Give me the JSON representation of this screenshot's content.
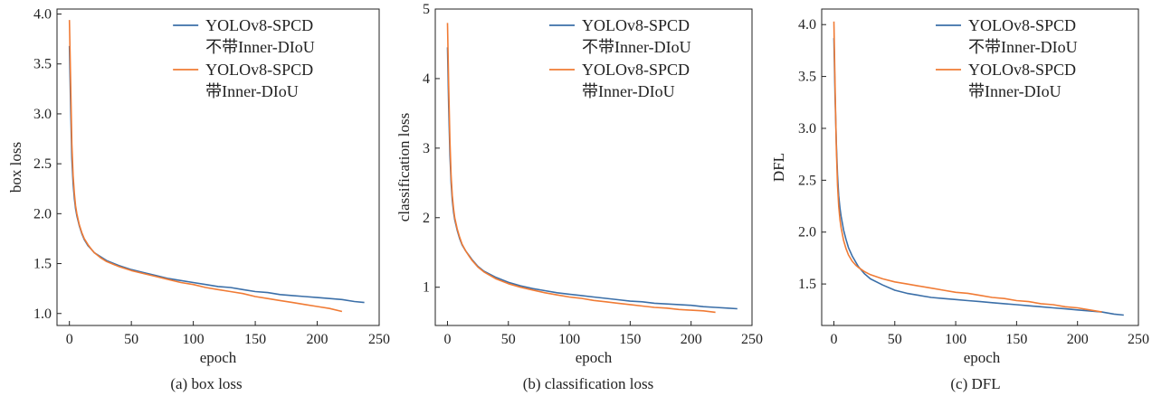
{
  "figure": {
    "panels_caption": [
      "(a) box loss",
      "(b) classification loss",
      "(c) DFL"
    ]
  },
  "chart_data": [
    {
      "type": "line",
      "caption": "(a) box loss",
      "xlabel": "epoch",
      "ylabel": "box loss",
      "xlim": [
        -10,
        250
      ],
      "ylim": [
        0.88,
        4.05
      ],
      "xticks": [
        0,
        50,
        100,
        150,
        200,
        250
      ],
      "yticks": [
        1.0,
        1.5,
        2.0,
        2.5,
        3.0,
        3.5,
        4.0
      ],
      "ytick_labels": [
        "1.0",
        "1.5",
        "2.0",
        "2.5",
        "3.0",
        "3.5",
        "4.0"
      ],
      "grid": false,
      "legend_position": "top-right",
      "series": [
        {
          "name": "YOLOv8-SPCD\n不带Inner-DIoU",
          "color": "#3b6fa8",
          "x": [
            0,
            1,
            2,
            3,
            4,
            5,
            6,
            8,
            10,
            12,
            15,
            18,
            20,
            25,
            30,
            40,
            50,
            60,
            70,
            80,
            90,
            100,
            110,
            120,
            130,
            140,
            150,
            160,
            170,
            180,
            190,
            200,
            210,
            220,
            230,
            238
          ],
          "y": [
            3.68,
            3.05,
            2.55,
            2.3,
            2.15,
            2.05,
            1.98,
            1.88,
            1.8,
            1.74,
            1.68,
            1.64,
            1.61,
            1.57,
            1.53,
            1.48,
            1.44,
            1.41,
            1.38,
            1.35,
            1.33,
            1.31,
            1.29,
            1.27,
            1.26,
            1.24,
            1.22,
            1.21,
            1.19,
            1.18,
            1.17,
            1.16,
            1.15,
            1.14,
            1.12,
            1.11
          ]
        },
        {
          "name": "YOLOv8-SPCD\n带Inner-DIoU",
          "color": "#f07b35",
          "x": [
            0,
            1,
            2,
            3,
            4,
            5,
            6,
            8,
            10,
            12,
            15,
            18,
            20,
            25,
            30,
            40,
            50,
            60,
            70,
            80,
            90,
            100,
            110,
            120,
            130,
            140,
            150,
            160,
            170,
            180,
            190,
            200,
            210,
            220
          ],
          "y": [
            3.94,
            3.3,
            2.7,
            2.38,
            2.2,
            2.08,
            2.0,
            1.89,
            1.81,
            1.75,
            1.69,
            1.64,
            1.61,
            1.56,
            1.52,
            1.47,
            1.43,
            1.4,
            1.37,
            1.34,
            1.31,
            1.29,
            1.26,
            1.24,
            1.22,
            1.2,
            1.17,
            1.15,
            1.13,
            1.11,
            1.09,
            1.07,
            1.05,
            1.02
          ]
        }
      ]
    },
    {
      "type": "line",
      "caption": "(b) classification loss",
      "xlabel": "epoch",
      "ylabel": "classification loss",
      "xlim": [
        -10,
        250
      ],
      "ylim": [
        0.45,
        5.0
      ],
      "xticks": [
        0,
        50,
        100,
        150,
        200,
        250
      ],
      "yticks": [
        1,
        2,
        3,
        4,
        5
      ],
      "ytick_labels": [
        "1",
        "2",
        "3",
        "4",
        "5"
      ],
      "grid": false,
      "legend_position": "top-right",
      "series": [
        {
          "name": "YOLOv8-SPCD\n不带Inner-DIoU",
          "color": "#3b6fa8",
          "x": [
            0,
            1,
            2,
            3,
            4,
            5,
            6,
            8,
            10,
            12,
            15,
            18,
            20,
            25,
            30,
            40,
            50,
            60,
            70,
            80,
            90,
            100,
            110,
            120,
            130,
            140,
            150,
            160,
            170,
            180,
            190,
            200,
            210,
            220,
            230,
            238
          ],
          "y": [
            4.45,
            3.6,
            2.9,
            2.5,
            2.25,
            2.08,
            1.97,
            1.82,
            1.7,
            1.61,
            1.52,
            1.45,
            1.4,
            1.3,
            1.23,
            1.14,
            1.07,
            1.02,
            0.98,
            0.95,
            0.92,
            0.9,
            0.88,
            0.86,
            0.84,
            0.82,
            0.8,
            0.79,
            0.77,
            0.76,
            0.75,
            0.74,
            0.72,
            0.71,
            0.7,
            0.69
          ]
        },
        {
          "name": "YOLOv8-SPCD\n带Inner-DIoU",
          "color": "#f07b35",
          "x": [
            0,
            1,
            2,
            3,
            4,
            5,
            6,
            8,
            10,
            12,
            15,
            18,
            20,
            25,
            30,
            40,
            50,
            60,
            70,
            80,
            90,
            100,
            110,
            120,
            130,
            140,
            150,
            160,
            170,
            180,
            190,
            200,
            210,
            220
          ],
          "y": [
            4.8,
            3.9,
            3.1,
            2.6,
            2.32,
            2.13,
            2.0,
            1.84,
            1.72,
            1.62,
            1.52,
            1.44,
            1.39,
            1.29,
            1.22,
            1.12,
            1.05,
            1.0,
            0.96,
            0.92,
            0.89,
            0.86,
            0.84,
            0.81,
            0.79,
            0.77,
            0.75,
            0.73,
            0.71,
            0.7,
            0.68,
            0.67,
            0.66,
            0.64
          ]
        }
      ]
    },
    {
      "type": "line",
      "caption": "(c) DFL",
      "xlabel": "epoch",
      "ylabel": "DFL",
      "xlim": [
        -10,
        250
      ],
      "ylim": [
        1.1,
        4.15
      ],
      "xticks": [
        0,
        50,
        100,
        150,
        200,
        250
      ],
      "yticks": [
        1.5,
        2.0,
        2.5,
        3.0,
        3.5,
        4.0
      ],
      "ytick_labels": [
        "1.5",
        "2.0",
        "2.5",
        "3.0",
        "3.5",
        "4.0"
      ],
      "grid": false,
      "legend_position": "top-right",
      "series": [
        {
          "name": "YOLOv8-SPCD\n不带Inner-DIoU",
          "color": "#3b6fa8",
          "x": [
            0,
            1,
            2,
            3,
            4,
            5,
            6,
            8,
            10,
            12,
            15,
            18,
            20,
            25,
            30,
            40,
            50,
            60,
            70,
            80,
            90,
            100,
            110,
            120,
            130,
            140,
            150,
            160,
            170,
            180,
            190,
            200,
            210,
            220,
            230,
            238
          ],
          "y": [
            3.87,
            3.3,
            2.85,
            2.55,
            2.35,
            2.23,
            2.15,
            2.02,
            1.93,
            1.85,
            1.77,
            1.71,
            1.67,
            1.6,
            1.55,
            1.49,
            1.44,
            1.41,
            1.39,
            1.37,
            1.36,
            1.35,
            1.34,
            1.33,
            1.32,
            1.31,
            1.3,
            1.29,
            1.28,
            1.27,
            1.26,
            1.25,
            1.24,
            1.23,
            1.21,
            1.2
          ]
        },
        {
          "name": "YOLOv8-SPCD\n带Inner-DIoU",
          "color": "#f07b35",
          "x": [
            0,
            1,
            2,
            3,
            4,
            5,
            6,
            8,
            10,
            12,
            15,
            18,
            20,
            25,
            30,
            40,
            50,
            60,
            70,
            80,
            90,
            100,
            110,
            120,
            130,
            140,
            150,
            160,
            170,
            180,
            190,
            200,
            210,
            220
          ],
          "y": [
            4.03,
            3.4,
            2.8,
            2.45,
            2.25,
            2.12,
            2.04,
            1.92,
            1.84,
            1.78,
            1.72,
            1.68,
            1.66,
            1.62,
            1.59,
            1.55,
            1.52,
            1.5,
            1.48,
            1.46,
            1.44,
            1.42,
            1.41,
            1.39,
            1.37,
            1.36,
            1.34,
            1.33,
            1.31,
            1.3,
            1.28,
            1.27,
            1.25,
            1.23
          ]
        }
      ]
    }
  ]
}
